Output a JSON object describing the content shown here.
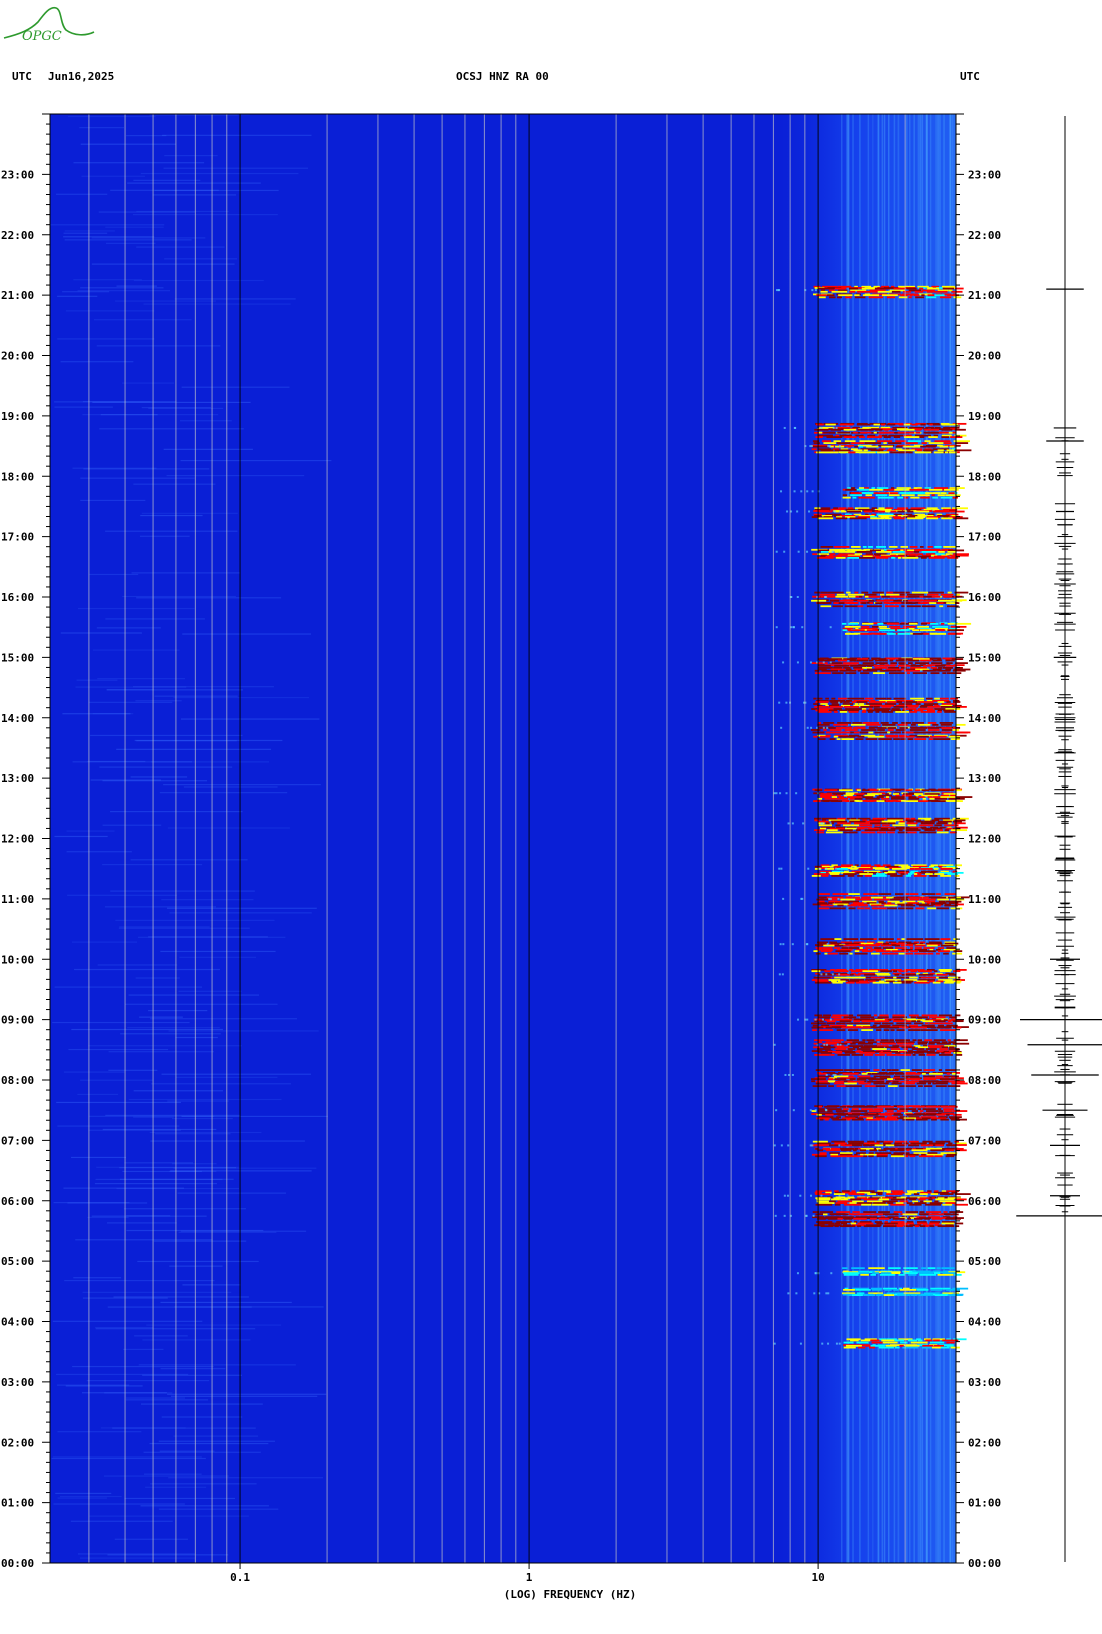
{
  "header": {
    "tz_left": "UTC",
    "date": "Jun16,2025",
    "station": "OCSJ HNZ RA 00",
    "tz_right": "UTC"
  },
  "logo": {
    "text": "OPGC",
    "color": "#2e9a2e"
  },
  "chart_data": {
    "type": "heatmap",
    "title": "OCSJ HNZ RA 00",
    "xlabel": "(LOG) FREQUENCY (HZ)",
    "x_scale": "log",
    "x_range_hz": [
      0.022,
      30
    ],
    "x_ticks": [
      {
        "value": 0.1,
        "label": "0.1"
      },
      {
        "value": 1,
        "label": "1"
      },
      {
        "value": 10,
        "label": "10"
      }
    ],
    "y_range_hours": [
      0,
      24
    ],
    "y_ticks": [
      "00:00",
      "01:00",
      "02:00",
      "03:00",
      "04:00",
      "05:00",
      "06:00",
      "07:00",
      "08:00",
      "09:00",
      "10:00",
      "11:00",
      "12:00",
      "13:00",
      "14:00",
      "15:00",
      "16:00",
      "17:00",
      "18:00",
      "19:00",
      "20:00",
      "21:00",
      "22:00",
      "23:00"
    ],
    "colormap": [
      "#00008b",
      "#0000ff",
      "#00bfff",
      "#00ffff",
      "#ffff00",
      "#ff0000",
      "#8b0000"
    ],
    "background_color": "#0a1fd6",
    "high_energy_band_hz": [
      12,
      30
    ],
    "events": [
      {
        "time": "03:38",
        "intensity": 0.55
      },
      {
        "time": "04:28",
        "intensity": 0.35
      },
      {
        "time": "04:48",
        "intensity": 0.4
      },
      {
        "time": "05:45",
        "intensity": 1.0
      },
      {
        "time": "06:05",
        "intensity": 0.85
      },
      {
        "time": "06:55",
        "intensity": 0.95
      },
      {
        "time": "07:30",
        "intensity": 1.0
      },
      {
        "time": "08:05",
        "intensity": 0.95
      },
      {
        "time": "08:35",
        "intensity": 1.0
      },
      {
        "time": "09:00",
        "intensity": 1.0
      },
      {
        "time": "09:45",
        "intensity": 0.85
      },
      {
        "time": "10:15",
        "intensity": 0.9
      },
      {
        "time": "11:00",
        "intensity": 0.85
      },
      {
        "time": "11:30",
        "intensity": 0.75
      },
      {
        "time": "12:15",
        "intensity": 0.9
      },
      {
        "time": "12:45",
        "intensity": 0.85
      },
      {
        "time": "13:50",
        "intensity": 0.95
      },
      {
        "time": "14:15",
        "intensity": 0.9
      },
      {
        "time": "14:55",
        "intensity": 1.0
      },
      {
        "time": "15:30",
        "intensity": 0.7
      },
      {
        "time": "16:00",
        "intensity": 0.9
      },
      {
        "time": "16:45",
        "intensity": 0.75
      },
      {
        "time": "17:25",
        "intensity": 0.8
      },
      {
        "time": "17:45",
        "intensity": 0.65
      },
      {
        "time": "18:30",
        "intensity": 0.8
      },
      {
        "time": "18:48",
        "intensity": 0.9
      },
      {
        "time": "21:05",
        "intensity": 0.8
      }
    ],
    "seismogram_spikes": [
      {
        "time": "21:06",
        "amplitude": 0.25
      },
      {
        "time": "18:48",
        "amplitude": 0.15
      },
      {
        "time": "18:35",
        "amplitude": 0.25
      },
      {
        "time": "17:25",
        "amplitude": 0.12
      },
      {
        "time": "15:00",
        "amplitude": 0.15
      },
      {
        "time": "13:50",
        "amplitude": 0.12
      },
      {
        "time": "10:00",
        "amplitude": 0.2
      },
      {
        "time": "09:00",
        "amplitude": 0.6
      },
      {
        "time": "08:35",
        "amplitude": 0.5
      },
      {
        "time": "08:05",
        "amplitude": 0.45
      },
      {
        "time": "07:30",
        "amplitude": 0.3
      },
      {
        "time": "06:55",
        "amplitude": 0.2
      },
      {
        "time": "06:05",
        "amplitude": 0.2
      },
      {
        "time": "05:45",
        "amplitude": 0.65
      }
    ]
  }
}
